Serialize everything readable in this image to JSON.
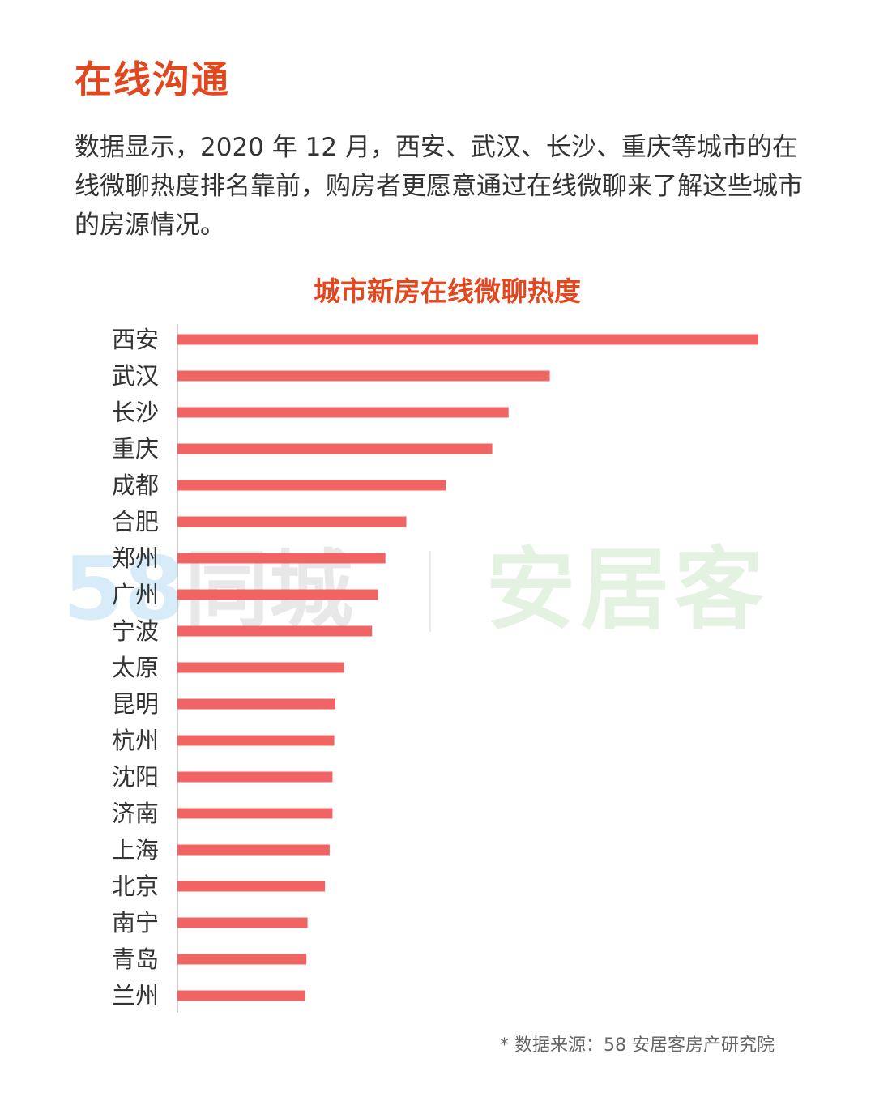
{
  "header": {
    "title": "在线沟通",
    "intro": "数据显示，2020 年 12 月，西安、武汉、长沙、重庆等城市的在线微聊热度排名靠前，购房者更愿意通过在线微聊来了解这些城市的房源情况。"
  },
  "watermark": {
    "number": "58",
    "brand_a": "同城",
    "brand_b": "安居客"
  },
  "source_note": "* 数据来源：58 安居客房产研究院",
  "colors": {
    "accent": "#e2481f",
    "bar": "#f06464",
    "text": "#333333"
  },
  "chart_data": {
    "type": "bar",
    "orientation": "horizontal",
    "title": "城市新房在线微聊热度",
    "xlabel": "",
    "ylabel": "",
    "xlim": [
      0,
      100
    ],
    "grid": false,
    "categories": [
      "西安",
      "武汉",
      "长沙",
      "重庆",
      "成都",
      "合肥",
      "郑州",
      "广州",
      "宁波",
      "太原",
      "昆明",
      "杭州",
      "沈阳",
      "济南",
      "上海",
      "北京",
      "南宁",
      "青岛",
      "兰州"
    ],
    "values": [
      100,
      64.1,
      57.0,
      54.2,
      46.2,
      39.4,
      35.8,
      34.5,
      33.5,
      28.7,
      27.2,
      27.0,
      26.7,
      26.7,
      26.2,
      25.4,
      22.4,
      22.2,
      22.0
    ]
  }
}
